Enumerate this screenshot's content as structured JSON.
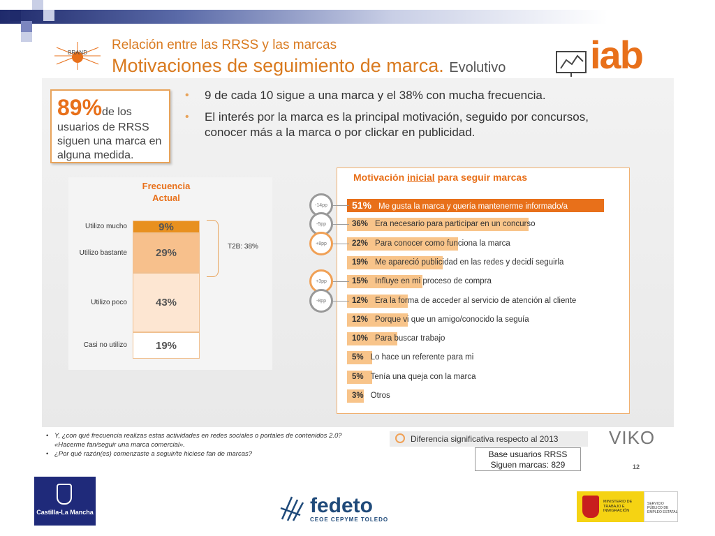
{
  "header": {
    "brand_badge": "BRAND",
    "subtitle": "Relación entre las RRSS y las marcas",
    "title": "Motivaciones de seguimiento de marca.",
    "title_suffix": "Evolutivo",
    "logo_iab": "iab"
  },
  "callout": {
    "big": "89%",
    "text_inline": "de los",
    "text_rest": "usuarios de RRSS siguen una marca en alguna medida."
  },
  "bullets": [
    "9 de cada 10 sigue a una marca y el 38% con mucha frecuencia.",
    "El interés por la marca es la principal motivación, seguido por concursos, conocer más a la marca o por clickar en publicidad."
  ],
  "colors": {
    "accent": "#e8701a",
    "light_bar": "#f8c48a",
    "highlight_circle": "#f0a055",
    "grey_circle": "#999999"
  },
  "chart_data": [
    {
      "type": "bar",
      "title": "Frecuencia Actual",
      "categories": [
        "Utilizo mucho",
        "Utilizo bastante",
        "Utilizo poco",
        "Casi no utilizo"
      ],
      "values": [
        9,
        29,
        43,
        19
      ],
      "labels": [
        "9%",
        "29%",
        "43%",
        "19%"
      ],
      "colors": [
        "#e8901f",
        "#f7c08c",
        "#fde6d2",
        "#ffffff"
      ],
      "annotation": "T2B: 38%"
    },
    {
      "type": "bar",
      "title": "Motivación inicial para seguir marcas",
      "title_prefix": "Motivación ",
      "title_underlined": "inicial",
      "title_suffix": " para seguir marcas",
      "categories": [
        "Me gusta la marca y quería mantenerme informado/a",
        "Era necesario para participar en un concurso",
        "Para conocer como funciona la marca",
        "Me apareció publicidad en las redes y decidí seguirla",
        "Influye en mi proceso de compra",
        "Era la forma de acceder al servicio de atención al cliente",
        "Porque vi que un amigo/conocido la seguía",
        "Para buscar trabajo",
        "Lo hace un referente para mi",
        "Tenía una queja con la marca",
        "Otros"
      ],
      "values": [
        51,
        36,
        22,
        19,
        15,
        12,
        12,
        10,
        5,
        5,
        3
      ],
      "labels": [
        "51%",
        "36%",
        "22%",
        "19%",
        "15%",
        "12%",
        "12%",
        "10%",
        "5%",
        "5%",
        "3%"
      ],
      "differences": [
        {
          "row": 0,
          "label": "-14pp",
          "style": "grey"
        },
        {
          "row": 1,
          "label": "-5pp",
          "style": "grey"
        },
        {
          "row": 2,
          "label": "+8pp",
          "style": "orange"
        },
        {
          "row": 4,
          "label": "+3pp",
          "style": "orange"
        },
        {
          "row": 5,
          "label": "-8pp",
          "style": "grey"
        }
      ]
    }
  ],
  "footnotes": [
    "Y, ¿con qué frecuencia realizas estas actividades en redes sociales o portales de contenidos 2.0? «Hacerme fan/seguir una marca comercial».",
    "¿Por qué razón(es) comenzaste a seguir/te hiciese fan de marcas?"
  ],
  "legend": "Diferencia significativa respecto al 2013",
  "base": {
    "line1": "Base usuarios RRSS",
    "line2": "Siguen marcas: 829"
  },
  "brand_viko": "VIKO",
  "page_number": "12",
  "logos": {
    "clm": "Castilla-La Mancha",
    "fedeto": "fedeto",
    "fedeto_sub": "CEOE CEPYME TOLEDO",
    "ministerio": "MINISTERIO DE TRABAJO E INMIGRACIÓN",
    "sepe": "SERVICIO PÚBLICO DE EMPLEO ESTATAL"
  }
}
